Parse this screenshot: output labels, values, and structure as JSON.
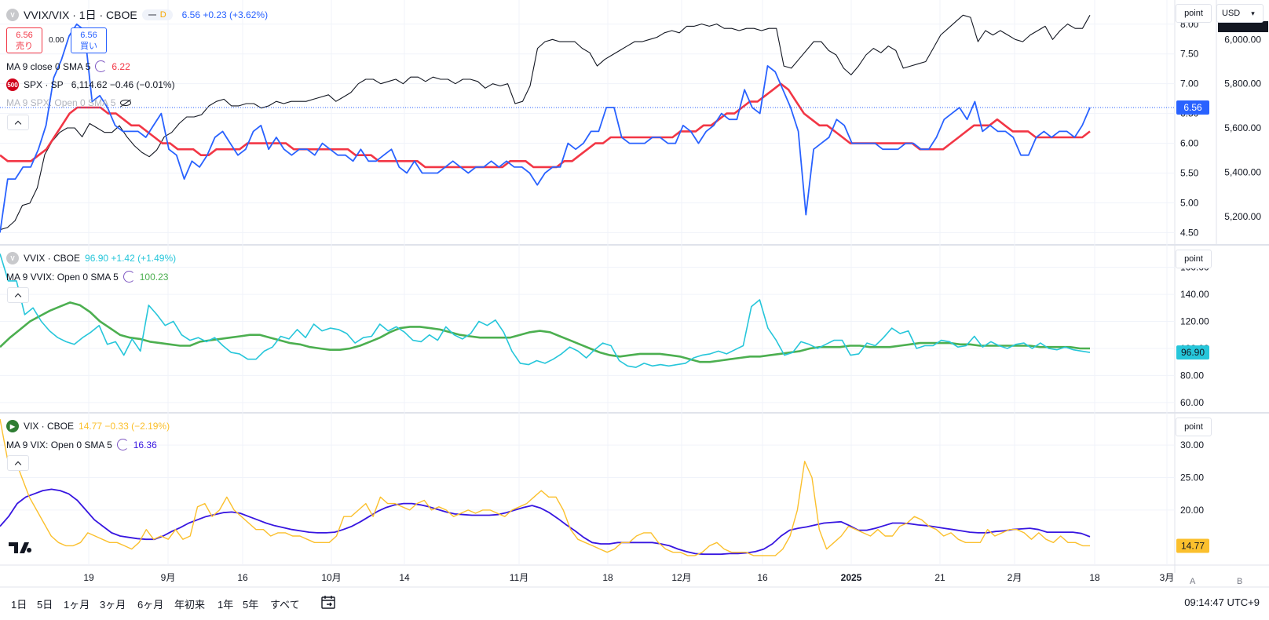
{
  "pane1": {
    "symbol": "VVIX/VIX · 1日 · CBOE",
    "interval_badge": "D",
    "quote": "6.56 +0.23 (+3.62%)",
    "sell": {
      "price": "6.56",
      "label": "売り"
    },
    "spread": "0.00",
    "buy": {
      "price": "6.56",
      "label": "買い"
    },
    "ma_label": "MA 9 close 0 SMA 5",
    "ma_value": "6.22",
    "compare_badge": "500",
    "compare_symbol": "SPX · SP",
    "compare_quote": "6,114.62 −0.46 (−0.01%)",
    "ma2_label": "MA 9 SPX: Open 0 SMA 5",
    "scale_mode": "point",
    "currency": "USD",
    "price_tag": "6.56"
  },
  "pane2": {
    "symbol": "VVIX · CBOE",
    "quote": "96.90 +1.42 (+1.49%)",
    "ma_label": "MA 9 VVIX: Open 0 SMA 5",
    "ma_value": "100.23",
    "scale_mode": "point",
    "price_tag": "96.90"
  },
  "pane3": {
    "symbol": "VIX · CBOE",
    "quote": "14.77 −0.33 (−2.19%)",
    "ma_label": "MA 9 VIX: Open 0 SMA 5",
    "ma_value": "16.36",
    "scale_mode": "point",
    "price_tag": "14.77"
  },
  "toolbar": {
    "ranges": [
      "1日",
      "5日",
      "1ヶ月",
      "3ヶ月",
      "6ヶ月",
      "年初来",
      "1年",
      "5年",
      "すべて"
    ],
    "clock": "09:14:47 UTC+9",
    "axis_a": "A",
    "axis_b": "B"
  },
  "colors": {
    "ratio": "#2962ff",
    "ratio_ma": "#f23645",
    "spx": "#131722",
    "vvix": "#26c6da",
    "vvix_ma": "#4caf50",
    "vix": "#fbc02d",
    "vix_ma": "#3716e0",
    "grid": "#f0f3fa"
  },
  "chart_data": [
    {
      "type": "line",
      "pane": "VVIX/VIX",
      "x_ticks": [
        "19",
        "9月",
        "16",
        "10月",
        "14",
        "11月",
        "18",
        "12月",
        "16",
        "2025",
        "21",
        "2月",
        "18",
        "3月"
      ],
      "y_ticks_left": [
        "4.50",
        "5.00",
        "5.50",
        "6.00",
        "6.50",
        "7.00",
        "7.50",
        "8.00"
      ],
      "y_ticks_right": [
        "5,200.00",
        "5,400.00",
        "5,600.00",
        "5,800.00",
        "6,000.00"
      ],
      "ylim": [
        4.4,
        8.3
      ],
      "ylim_right": [
        5100,
        6150
      ],
      "series": [
        {
          "name": "VVIX/VIX",
          "axis": "left",
          "values": [
            4.5,
            5.4,
            5.4,
            5.6,
            5.6,
            5.9,
            6.3,
            7.1,
            7.4,
            7.8,
            8.0,
            7.9,
            6.7,
            6.8,
            6.6,
            6.3,
            6.2,
            6.2,
            6.2,
            6.1,
            6.3,
            6.5,
            5.9,
            5.8,
            5.4,
            5.7,
            5.6,
            5.8,
            6.1,
            6.2,
            6.0,
            5.8,
            5.9,
            6.2,
            6.3,
            5.9,
            6.1,
            5.9,
            5.8,
            5.9,
            5.9,
            5.8,
            6.0,
            5.9,
            5.8,
            5.8,
            5.7,
            5.9,
            5.7,
            5.7,
            5.8,
            5.9,
            5.6,
            5.5,
            5.7,
            5.5,
            5.5,
            5.5,
            5.6,
            5.7,
            5.6,
            5.5,
            5.6,
            5.6,
            5.7,
            5.6,
            5.7,
            5.6,
            5.6,
            5.5,
            5.3,
            5.5,
            5.6,
            5.6,
            6.0,
            5.9,
            6.0,
            6.2,
            6.2,
            6.6,
            6.6,
            6.1,
            6.0,
            6.0,
            6.0,
            6.1,
            6.1,
            6.0,
            6.0,
            6.3,
            6.2,
            6.0,
            6.2,
            6.3,
            6.5,
            6.4,
            6.4,
            6.9,
            6.6,
            6.5,
            7.3,
            7.2,
            6.9,
            6.6,
            6.2,
            4.8,
            5.9,
            6.0,
            6.1,
            6.4,
            6.3,
            6.0,
            6.0,
            6.0,
            6.0,
            5.9,
            5.9,
            5.9,
            6.0,
            6.0,
            5.9,
            5.9,
            6.1,
            6.4,
            6.5,
            6.6,
            6.4,
            6.7,
            6.2,
            6.3,
            6.2,
            6.2,
            6.1,
            5.8,
            5.8,
            6.1,
            6.2,
            6.1,
            6.2,
            6.2,
            6.1,
            6.3,
            6.6
          ]
        },
        {
          "name": "MA 9 close 0 SMA 5",
          "axis": "left",
          "values": [
            5.8,
            5.7,
            5.7,
            5.7,
            5.7,
            5.8,
            5.9,
            6.1,
            6.3,
            6.5,
            6.6,
            6.6,
            6.6,
            6.6,
            6.5,
            6.5,
            6.4,
            6.3,
            6.3,
            6.2,
            6.1,
            6.0,
            6.0,
            5.9,
            5.9,
            5.9,
            5.8,
            5.8,
            5.9,
            5.9,
            5.9,
            5.9,
            6.0,
            6.0,
            6.0,
            6.0,
            6.0,
            6.0,
            5.9,
            5.9,
            5.9,
            5.9,
            5.9,
            5.9,
            5.9,
            5.9,
            5.8,
            5.8,
            5.8,
            5.7,
            5.7,
            5.7,
            5.7,
            5.7,
            5.7,
            5.6,
            5.6,
            5.6,
            5.6,
            5.6,
            5.6,
            5.6,
            5.6,
            5.6,
            5.6,
            5.6,
            5.7,
            5.7,
            5.7,
            5.6,
            5.6,
            5.6,
            5.6,
            5.7,
            5.7,
            5.8,
            5.9,
            6.0,
            6.0,
            6.1,
            6.1,
            6.1,
            6.1,
            6.1,
            6.1,
            6.1,
            6.1,
            6.1,
            6.2,
            6.2,
            6.2,
            6.3,
            6.3,
            6.4,
            6.5,
            6.5,
            6.6,
            6.7,
            6.7,
            6.8,
            6.9,
            7.0,
            6.9,
            6.7,
            6.5,
            6.4,
            6.3,
            6.3,
            6.2,
            6.1,
            6.0,
            6.0,
            6.0,
            6.0,
            6.0,
            6.0,
            6.0,
            6.0,
            6.0,
            5.9,
            5.9,
            5.9,
            5.9,
            6.0,
            6.1,
            6.2,
            6.3,
            6.3,
            6.3,
            6.4,
            6.3,
            6.2,
            6.2,
            6.2,
            6.1,
            6.1,
            6.1,
            6.1,
            6.1,
            6.1,
            6.1,
            6.2
          ]
        },
        {
          "name": "SPX · SP",
          "axis": "right",
          "values": [
            5140,
            5150,
            5180,
            5250,
            5260,
            5330,
            5480,
            5540,
            5580,
            5600,
            5600,
            5560,
            5620,
            5600,
            5580,
            5580,
            5610,
            5560,
            5520,
            5490,
            5470,
            5500,
            5560,
            5580,
            5620,
            5650,
            5650,
            5660,
            5700,
            5720,
            5730,
            5700,
            5700,
            5710,
            5710,
            5690,
            5700,
            5720,
            5710,
            5720,
            5720,
            5720,
            5730,
            5740,
            5750,
            5720,
            5740,
            5760,
            5800,
            5820,
            5820,
            5800,
            5810,
            5820,
            5800,
            5830,
            5830,
            5810,
            5830,
            5820,
            5820,
            5800,
            5820,
            5820,
            5810,
            5780,
            5800,
            5790,
            5800,
            5710,
            5720,
            5790,
            5960,
            5990,
            6000,
            5990,
            5990,
            5990,
            5960,
            5940,
            5880,
            5910,
            5930,
            5950,
            5970,
            5990,
            5990,
            6000,
            6010,
            6030,
            6040,
            6030,
            6060,
            6060,
            6070,
            6060,
            6070,
            6050,
            6050,
            6040,
            6050,
            6050,
            6040,
            6050,
            6050,
            5880,
            5870,
            5910,
            5950,
            5990,
            5990,
            5950,
            5930,
            5870,
            5840,
            5880,
            5930,
            5960,
            5940,
            5970,
            5950,
            5870,
            5880,
            5890,
            5900,
            5960,
            6020,
            6050,
            6080,
            6110,
            6100,
            5990,
            6040,
            6020,
            6040,
            6020,
            6000,
            5990,
            6020,
            6040,
            6060,
            6000,
            6040,
            6070,
            6050,
            6050,
            6110
          ]
        }
      ]
    },
    {
      "type": "line",
      "pane": "VVIX",
      "y_ticks": [
        "60.00",
        "80.00",
        "100.00",
        "120.00",
        "140.00",
        "160.00"
      ],
      "ylim": [
        57,
        172
      ],
      "series": [
        {
          "name": "VVIX · CBOE",
          "values": [
            170,
            150,
            150,
            125,
            130,
            120,
            113,
            108,
            105,
            103,
            108,
            112,
            117,
            103,
            105,
            95,
            107,
            98,
            132,
            125,
            117,
            120,
            110,
            106,
            108,
            105,
            108,
            102,
            97,
            96,
            92,
            92,
            98,
            101,
            109,
            107,
            114,
            108,
            118,
            113,
            115,
            114,
            111,
            104,
            108,
            109,
            118,
            113,
            116,
            112,
            106,
            105,
            110,
            106,
            116,
            110,
            107,
            111,
            120,
            117,
            121,
            112,
            98,
            89,
            88,
            91,
            89,
            92,
            96,
            101,
            98,
            93,
            99,
            104,
            102,
            91,
            87,
            86,
            89,
            87,
            88,
            87,
            88,
            89,
            93,
            95,
            96,
            98,
            96,
            99,
            102,
            131,
            136,
            115,
            106,
            95,
            97,
            105,
            103,
            100,
            103,
            106,
            106,
            95,
            96,
            104,
            102,
            108,
            115,
            111,
            113,
            100,
            102,
            102,
            106,
            105,
            101,
            102,
            109,
            101,
            105,
            102,
            100,
            103,
            104,
            100,
            104,
            100,
            99,
            101,
            99,
            98,
            97
          ]
        },
        {
          "name": "MA 9 VVIX: Open 0 SMA 5",
          "values": [
            101,
            108,
            114,
            120,
            124,
            128,
            131,
            134,
            132,
            127,
            120,
            115,
            110,
            108,
            107,
            105,
            104,
            103,
            102,
            102,
            105,
            106,
            107,
            108,
            109,
            110,
            110,
            108,
            106,
            104,
            103,
            101,
            100,
            99,
            99,
            100,
            102,
            105,
            108,
            112,
            115,
            116,
            116,
            115,
            114,
            112,
            110,
            109,
            108,
            108,
            108,
            108,
            110,
            112,
            113,
            112,
            109,
            106,
            103,
            100,
            97,
            95,
            94,
            95,
            96,
            96,
            96,
            95,
            94,
            92,
            90,
            90,
            91,
            92,
            93,
            94,
            94,
            95,
            96,
            97,
            98,
            100,
            101,
            101,
            101,
            102,
            102,
            101,
            101,
            101,
            102,
            103,
            104,
            104,
            104,
            104,
            103,
            103,
            102,
            102,
            102,
            102,
            102,
            102,
            101,
            101,
            101,
            101,
            100,
            100
          ]
        }
      ]
    },
    {
      "type": "line",
      "pane": "VIX",
      "y_ticks": [
        "20.00",
        "25.00",
        "30.00"
      ],
      "ylim": [
        12.5,
        34
      ],
      "series": [
        {
          "name": "VIX · CBOE",
          "values": [
            34,
            28,
            28,
            25,
            22,
            20,
            18,
            16,
            15,
            14.5,
            14.5,
            15,
            16.5,
            16,
            15.5,
            15,
            15,
            14.5,
            14,
            15,
            17,
            15.5,
            16,
            15.5,
            17,
            15.5,
            16,
            20.5,
            21,
            19,
            20,
            22,
            20,
            19,
            18,
            17,
            17,
            16,
            16.5,
            16.5,
            16,
            16,
            15.5,
            15,
            15,
            15,
            16,
            19,
            19,
            20,
            21,
            19,
            22,
            21,
            21,
            20.5,
            20,
            21,
            21.5,
            20,
            20.5,
            20,
            19,
            19.5,
            20,
            19.5,
            20,
            20,
            19.5,
            19,
            20,
            20.5,
            21,
            22,
            23,
            22,
            22,
            20,
            17,
            15.5,
            15,
            14.5,
            14,
            13.5,
            14,
            15,
            15,
            16,
            16.5,
            16.5,
            15,
            14,
            13.5,
            13.5,
            13,
            13,
            13.5,
            14.5,
            15,
            14,
            13.5,
            13.5,
            13.5,
            13,
            13,
            13,
            13,
            14,
            16,
            20,
            27.5,
            25,
            17,
            14,
            15,
            16,
            17.5,
            17,
            16.5,
            16,
            17,
            16,
            16,
            17.5,
            18,
            19,
            18.5,
            17.5,
            17,
            16,
            16.5,
            15.5,
            15,
            15,
            15,
            17,
            16,
            16.5,
            17,
            17,
            16.5,
            15.5,
            16.5,
            15.5,
            15,
            16,
            15,
            15,
            14.5,
            14.5
          ]
        },
        {
          "name": "MA 9 VIX: Open 0 SMA 5",
          "values": [
            17.5,
            19,
            21,
            22,
            22.5,
            23,
            23.2,
            23,
            22.5,
            21.5,
            20,
            18.5,
            17.5,
            16.5,
            16,
            15.8,
            15.6,
            15.5,
            15.5,
            16,
            16.7,
            17.3,
            18,
            18.5,
            19,
            19.3,
            19.6,
            19.7,
            19.5,
            19,
            18.5,
            18,
            17.6,
            17.3,
            17,
            16.8,
            16.6,
            16.5,
            16.5,
            16.6,
            17,
            17.5,
            18.2,
            19,
            19.8,
            20.4,
            20.8,
            21,
            21,
            20.8,
            20.5,
            20.1,
            19.7,
            19.4,
            19.3,
            19.2,
            19.2,
            19.2,
            19.3,
            19.6,
            20,
            20.4,
            20.7,
            20.3,
            19.6,
            18.7,
            17.7,
            16.8,
            15.8,
            15,
            14.8,
            14.8,
            15,
            15,
            15,
            15,
            15,
            14.8,
            14.5,
            14,
            13.6,
            13.3,
            13.2,
            13.2,
            13.2,
            13.3,
            13.3,
            13.4,
            13.6,
            14,
            14.8,
            16,
            16.9,
            17.2,
            17.4,
            17.7,
            18,
            18.1,
            18.2,
            17.6,
            16.9,
            16.9,
            17.2,
            17.6,
            18,
            18,
            17.9,
            17.7,
            17.6,
            17.4,
            17.2,
            17,
            16.8,
            16.6,
            16.5,
            16.5,
            16.7,
            16.8,
            17,
            17.1,
            17.2,
            17,
            16.6,
            16.6,
            16.6,
            16.6,
            16.4,
            15.9
          ]
        }
      ]
    }
  ]
}
